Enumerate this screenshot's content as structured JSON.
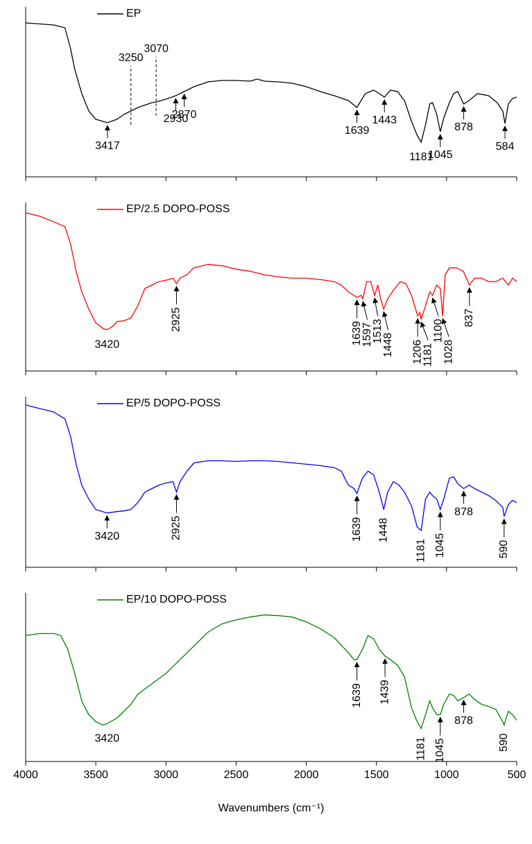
{
  "chart_data": [
    {
      "type": "line",
      "xlim": [
        4000,
        500
      ],
      "ylim": [
        0,
        245
      ],
      "xticks": [
        4000,
        3500,
        3000,
        2500,
        2000,
        1500,
        1000,
        500
      ],
      "show_tick_labels": false,
      "x": [
        4000,
        3800,
        3720,
        3680,
        3650,
        3600,
        3550,
        3500,
        3417,
        3350,
        3300,
        3250,
        3200,
        3100,
        3070,
        3000,
        2930,
        2870,
        2800,
        2700,
        2600,
        2500,
        2400,
        2350,
        2300,
        2200,
        2100,
        2000,
        1900,
        1800,
        1700,
        1639,
        1580,
        1520,
        1480,
        1443,
        1400,
        1350,
        1300,
        1250,
        1210,
        1181,
        1150,
        1120,
        1100,
        1070,
        1045,
        1020,
        980,
        950,
        920,
        878,
        840,
        780,
        700,
        640,
        600,
        584,
        560,
        530,
        500
      ],
      "series": [
        {
          "name": "EP",
          "color": "#000000",
          "values": [
            222,
            219,
            215,
            185,
            155,
            120,
            95,
            83,
            78,
            83,
            90,
            95,
            100,
            107,
            108,
            112,
            117,
            123,
            130,
            137,
            139,
            139,
            138,
            141,
            138,
            137,
            135,
            130,
            123,
            117,
            110,
            100,
            120,
            125,
            120,
            115,
            125,
            123,
            110,
            80,
            60,
            50,
            75,
            105,
            107,
            90,
            65,
            85,
            107,
            120,
            123,
            105,
            110,
            120,
            117,
            107,
            95,
            77,
            105,
            113,
            115
          ]
        }
      ],
      "annotations": [
        {
          "x": 3417,
          "rotated": false,
          "arrow": true
        },
        {
          "x": 2930,
          "rotated": false,
          "arrow": true
        },
        {
          "x": 2870,
          "rotated": false,
          "arrow": true
        },
        {
          "x": 1639,
          "rotated": false,
          "arrow": true
        },
        {
          "x": 1443,
          "rotated": false,
          "arrow": true
        },
        {
          "x": 1181,
          "rotated": false,
          "arrow": false
        },
        {
          "x": 1045,
          "rotated": false,
          "arrow": true
        },
        {
          "x": 878,
          "rotated": false,
          "arrow": true
        },
        {
          "x": 584,
          "rotated": false,
          "arrow": true
        }
      ],
      "dashed_lines": [
        {
          "x": 3250
        },
        {
          "x": 3070
        }
      ]
    },
    {
      "type": "line",
      "xlim": [
        4000,
        500
      ],
      "ylim": [
        0,
        245
      ],
      "xticks": [
        4000,
        3500,
        3000,
        2500,
        2000,
        1500,
        1000,
        500
      ],
      "show_tick_labels": false,
      "x": [
        4000,
        3900,
        3800,
        3720,
        3680,
        3640,
        3600,
        3550,
        3500,
        3450,
        3420,
        3380,
        3350,
        3300,
        3250,
        3200,
        3150,
        3100,
        3050,
        3000,
        2950,
        2925,
        2900,
        2850,
        2800,
        2700,
        2600,
        2500,
        2400,
        2300,
        2200,
        2100,
        2000,
        1900,
        1800,
        1750,
        1700,
        1660,
        1639,
        1610,
        1597,
        1570,
        1540,
        1513,
        1490,
        1470,
        1448,
        1420,
        1380,
        1330,
        1290,
        1250,
        1206,
        1190,
        1181,
        1150,
        1120,
        1100,
        1070,
        1045,
        1028,
        1010,
        980,
        930,
        880,
        837,
        800,
        750,
        700,
        650,
        600,
        560,
        530,
        500
      ],
      "series": [
        {
          "name": "EP/2.5 DOPO-POSS",
          "color": "#ff0000",
          "values": [
            230,
            225,
            217,
            210,
            185,
            145,
            115,
            90,
            70,
            62,
            60,
            65,
            72,
            73,
            77,
            95,
            120,
            125,
            130,
            132,
            135,
            127,
            135,
            140,
            150,
            155,
            153,
            148,
            145,
            140,
            137,
            135,
            135,
            133,
            130,
            125,
            115,
            110,
            107,
            110,
            105,
            130,
            130,
            110,
            125,
            105,
            90,
            105,
            117,
            130,
            127,
            110,
            80,
            85,
            75,
            95,
            115,
            110,
            125,
            120,
            80,
            140,
            150,
            150,
            145,
            125,
            135,
            135,
            130,
            130,
            135,
            125,
            135,
            130
          ]
        }
      ],
      "annotations": [
        {
          "x": 3420,
          "rotated": false,
          "arrow": false
        },
        {
          "x": 2925,
          "rotated": true,
          "arrow": true
        },
        {
          "x": 1639,
          "rotated": true,
          "arrow": true
        },
        {
          "x": 1597,
          "rotated": true,
          "arrow": true
        },
        {
          "x": 1513,
          "rotated": true,
          "arrow": true
        },
        {
          "x": 1448,
          "rotated": true,
          "arrow": true
        },
        {
          "x": 1206,
          "rotated": true,
          "arrow": true
        },
        {
          "x": 1181,
          "rotated": true,
          "arrow": true
        },
        {
          "x": 1100,
          "rotated": true,
          "arrow": true
        },
        {
          "x": 1028,
          "rotated": true,
          "arrow": true
        },
        {
          "x": 837,
          "rotated": true,
          "arrow": true
        }
      ]
    },
    {
      "type": "line",
      "xlim": [
        4000,
        500
      ],
      "ylim": [
        0,
        245
      ],
      "xticks": [
        4000,
        3500,
        3000,
        2500,
        2000,
        1500,
        1000,
        500
      ],
      "show_tick_labels": false,
      "x": [
        4000,
        3900,
        3800,
        3720,
        3680,
        3640,
        3600,
        3550,
        3500,
        3420,
        3350,
        3300,
        3250,
        3200,
        3150,
        3100,
        3050,
        3000,
        2950,
        2925,
        2900,
        2850,
        2800,
        2700,
        2600,
        2500,
        2400,
        2300,
        2200,
        2100,
        2000,
        1900,
        1800,
        1750,
        1700,
        1660,
        1639,
        1600,
        1560,
        1520,
        1480,
        1448,
        1420,
        1380,
        1340,
        1300,
        1250,
        1210,
        1181,
        1150,
        1120,
        1100,
        1070,
        1045,
        1020,
        980,
        950,
        920,
        878,
        840,
        800,
        750,
        700,
        650,
        600,
        590,
        560,
        530,
        500
      ],
      "series": [
        {
          "name": "EP/5 DOPO-POSS",
          "color": "#0000ff",
          "values": [
            233,
            228,
            223,
            213,
            188,
            148,
            118,
            98,
            83,
            78,
            80,
            81,
            83,
            93,
            108,
            113,
            118,
            121,
            123,
            108,
            123,
            138,
            150,
            153,
            153,
            152,
            153,
            153,
            152,
            150,
            148,
            146,
            143,
            138,
            118,
            113,
            106,
            128,
            138,
            133,
            108,
            83,
            108,
            123,
            118,
            108,
            88,
            58,
            53,
            98,
            108,
            103,
            98,
            83,
            98,
            128,
            130,
            120,
            113,
            118,
            113,
            108,
            103,
            96,
            86,
            73,
            90,
            96,
            93
          ]
        }
      ],
      "annotations": [
        {
          "x": 3420,
          "rotated": false,
          "arrow": true
        },
        {
          "x": 2925,
          "rotated": true,
          "arrow": true
        },
        {
          "x": 1639,
          "rotated": true,
          "arrow": true
        },
        {
          "x": 1448,
          "rotated": true,
          "arrow": false
        },
        {
          "x": 1181,
          "rotated": true,
          "arrow": false
        },
        {
          "x": 1045,
          "rotated": true,
          "arrow": true
        },
        {
          "x": 878,
          "rotated": false,
          "arrow": true
        },
        {
          "x": 590,
          "rotated": true,
          "arrow": true
        }
      ]
    },
    {
      "type": "line",
      "xlim": [
        4000,
        500
      ],
      "ylim": [
        0,
        245
      ],
      "xticks": [
        4000,
        3500,
        3000,
        2500,
        2000,
        1500,
        1000,
        500
      ],
      "show_tick_labels": true,
      "xlabel": "Wavenumbers (cm⁻¹)",
      "x": [
        4000,
        3900,
        3800,
        3750,
        3700,
        3650,
        3600,
        3550,
        3500,
        3450,
        3420,
        3350,
        3300,
        3250,
        3200,
        3100,
        3000,
        2900,
        2800,
        2700,
        2600,
        2500,
        2400,
        2300,
        2200,
        2100,
        2000,
        1900,
        1800,
        1700,
        1660,
        1639,
        1600,
        1560,
        1520,
        1480,
        1439,
        1400,
        1350,
        1300,
        1250,
        1210,
        1181,
        1150,
        1120,
        1100,
        1070,
        1045,
        1020,
        980,
        950,
        920,
        878,
        840,
        800,
        750,
        700,
        650,
        600,
        590,
        560,
        530,
        500
      ],
      "series": [
        {
          "name": "EP/10 DOPO-POSS",
          "color": "#008000",
          "values": [
            183,
            186,
            186,
            183,
            163,
            128,
            88,
            68,
            58,
            53,
            55,
            63,
            73,
            83,
            98,
            113,
            128,
            148,
            168,
            188,
            200,
            206,
            210,
            213,
            212,
            210,
            203,
            193,
            180,
            158,
            148,
            148,
            163,
            183,
            178,
            163,
            153,
            148,
            140,
            123,
            78,
            58,
            48,
            68,
            88,
            78,
            68,
            68,
            83,
            98,
            96,
            88,
            93,
            98,
            90,
            83,
            80,
            76,
            58,
            53,
            73,
            68,
            60
          ]
        }
      ],
      "annotations": [
        {
          "x": 3420,
          "rotated": false,
          "arrow": false
        },
        {
          "x": 1639,
          "rotated": true,
          "arrow": true
        },
        {
          "x": 1439,
          "rotated": true,
          "arrow": true
        },
        {
          "x": 1181,
          "rotated": true,
          "arrow": false
        },
        {
          "x": 1045,
          "rotated": true,
          "arrow": true
        },
        {
          "x": 878,
          "rotated": false,
          "arrow": true
        },
        {
          "x": 590,
          "rotated": true,
          "arrow": false
        }
      ]
    }
  ]
}
